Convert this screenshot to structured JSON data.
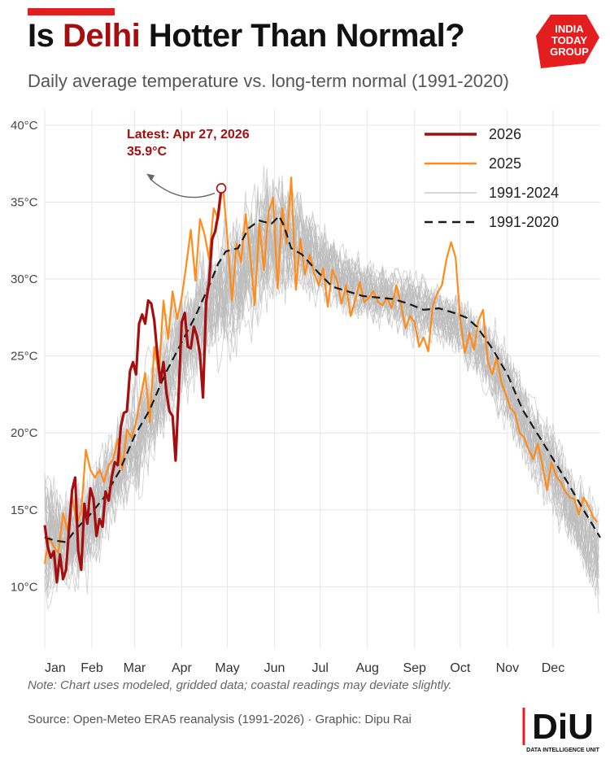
{
  "header": {
    "title_pre": "Is ",
    "title_highlight": "Delhi",
    "title_post": " Hotter Than Normal?",
    "subtitle": "Daily average temperature vs. long-term normal (1991-2020)"
  },
  "logo_india_today": {
    "line1": "INDIA",
    "line2": "TODAY",
    "line3": "GROUP",
    "color": "#e41e1e"
  },
  "logo_diu": {
    "mark": "DiU",
    "caption": "DATA INTELLIGENCE UNIT"
  },
  "footer": {
    "note": "Note: Chart uses modeled, gridded data; coastal readings may deviate slightly.",
    "source": "Source: Open-Meteo ERA5 reanalysis (1991-2026) · Graphic: Dipu Rai"
  },
  "colors": {
    "accent_red": "#e41e1e",
    "series_2026": "#a50e0e",
    "series_2025": "#ff8c1a",
    "series_history": "#bdbdbd",
    "series_normal": "#1a1a1a",
    "grid": "#e6e6e6"
  },
  "chart_data": {
    "type": "line",
    "xlabel": "",
    "ylabel": "",
    "x_unit": "day_of_year",
    "xlim": [
      1,
      366
    ],
    "ylim": [
      6,
      41
    ],
    "ytick_values": [
      10,
      15,
      20,
      25,
      30,
      35,
      40
    ],
    "ytick_labels": [
      "10°C",
      "15°C",
      "20°C",
      "25°C",
      "30°C",
      "35°C",
      "40°C"
    ],
    "xtick_days": [
      1,
      32,
      60,
      91,
      121,
      152,
      182,
      213,
      244,
      274,
      305,
      335
    ],
    "xtick_labels": [
      "Jan",
      "Feb",
      "Mar",
      "Apr",
      "May",
      "Jun",
      "Jul",
      "Aug",
      "Sep",
      "Oct",
      "Nov",
      "Dec"
    ],
    "grid": true,
    "legend": {
      "placement": "top-right",
      "entries": [
        {
          "label": "2026",
          "series": "2026"
        },
        {
          "label": "2025",
          "series": "2025"
        },
        {
          "label": "1991-2024",
          "series": "history"
        },
        {
          "label": "1991-2020",
          "series": "normal"
        }
      ]
    },
    "annotation": {
      "line1": "Latest: Apr 27, 2026",
      "line2": "35.9°C",
      "day": 117,
      "value": 35.9
    },
    "series": [
      {
        "name": "1991-2020",
        "style": "dashed",
        "x": [
          1,
          8,
          15,
          22,
          30,
          40,
          50,
          60,
          70,
          80,
          90,
          100,
          110,
          115,
          120,
          128,
          135,
          142,
          150,
          155,
          158,
          163,
          170,
          180,
          190,
          200,
          210,
          220,
          230,
          240,
          250,
          260,
          270,
          278,
          285,
          295,
          305,
          315,
          325,
          335,
          345,
          355,
          366
        ],
        "values": [
          13.2,
          13.0,
          12.9,
          13.8,
          14.6,
          15.8,
          17.5,
          19.8,
          21.5,
          23.8,
          25.7,
          27.6,
          29.8,
          31.0,
          31.8,
          32.0,
          33.3,
          33.8,
          33.6,
          34.1,
          33.5,
          32.0,
          31.6,
          30.5,
          29.5,
          29.2,
          28.9,
          28.8,
          28.7,
          28.4,
          28.0,
          28.1,
          27.8,
          27.5,
          26.9,
          25.5,
          23.8,
          21.5,
          19.9,
          18.3,
          16.7,
          15.0,
          13.2
        ]
      },
      {
        "name": "2025",
        "x": [
          1,
          4,
          7,
          10,
          13,
          16,
          19,
          22,
          25,
          28,
          31,
          34,
          37,
          40,
          43,
          46,
          49,
          52,
          55,
          58,
          61,
          64,
          67,
          70,
          73,
          76,
          79,
          82,
          85,
          88,
          91,
          94,
          97,
          100,
          103,
          106,
          109,
          112,
          115,
          118,
          121,
          124,
          127,
          130,
          133,
          136,
          139,
          142,
          145,
          148,
          151,
          154,
          157,
          160,
          163,
          166,
          169,
          172,
          175,
          178,
          181,
          184,
          187,
          190,
          193,
          196,
          199,
          202,
          205,
          208,
          211,
          214,
          217,
          220,
          223,
          226,
          229,
          232,
          235,
          238,
          241,
          244,
          247,
          250,
          253,
          256,
          259,
          262,
          265,
          268,
          271,
          274,
          277,
          280,
          283,
          286,
          289,
          292,
          295,
          298,
          301,
          304,
          307,
          310,
          313,
          316,
          319,
          322,
          325,
          328,
          331,
          334,
          337,
          340,
          343,
          346,
          349,
          352,
          355,
          358,
          361,
          364
        ],
        "values": [
          11.5,
          13.2,
          12.6,
          12.2,
          14.8,
          13.6,
          15.9,
          14.1,
          14.9,
          18.9,
          17.6,
          17.1,
          17.6,
          16.8,
          17.9,
          18.3,
          19.6,
          17.6,
          20.2,
          19.7,
          20.7,
          22.3,
          23.9,
          20.7,
          25.6,
          23.8,
          28.6,
          26.1,
          29.2,
          27.4,
          28.8,
          30.9,
          33.2,
          29.9,
          33.9,
          32.9,
          31.3,
          34.6,
          33.9,
          36.2,
          32.7,
          28.6,
          32.3,
          31.1,
          34.2,
          31.6,
          28.3,
          33.6,
          30.6,
          34.3,
          35.3,
          29.4,
          34.6,
          32.3,
          36.6,
          29.3,
          32.6,
          30.3,
          31.6,
          30.4,
          29.6,
          30.7,
          28.2,
          30.6,
          29.9,
          28.4,
          29.6,
          27.6,
          28.6,
          29.8,
          28.5,
          28.8,
          29.2,
          28.5,
          28.3,
          28.8,
          28.1,
          29.6,
          28.4,
          26.8,
          27.6,
          27.2,
          25.6,
          26.2,
          25.3,
          28.3,
          29.1,
          29.6,
          31.3,
          32.4,
          31.4,
          27.4,
          25.2,
          26.5,
          25.4,
          27.3,
          28.0,
          24.7,
          23.8,
          24.9,
          23.3,
          22.5,
          21.6,
          21.3,
          20.0,
          19.7,
          18.9,
          18.3,
          19.3,
          17.9,
          16.3,
          18.1,
          17.2,
          16.8,
          16.2,
          15.8,
          15.7,
          14.7,
          15.8,
          15.3,
          14.6,
          14.2
        ]
      },
      {
        "name": "2026",
        "x": [
          1,
          3,
          5,
          7,
          9,
          11,
          13,
          15,
          17,
          19,
          21,
          23,
          25,
          27,
          29,
          31,
          33,
          35,
          37,
          39,
          41,
          43,
          45,
          47,
          49,
          51,
          53,
          55,
          57,
          59,
          61,
          63,
          65,
          67,
          69,
          71,
          73,
          75,
          77,
          79,
          81,
          83,
          85,
          87,
          89,
          91,
          93,
          95,
          97,
          99,
          101,
          103,
          105,
          107,
          109,
          111,
          113,
          115,
          117
        ],
        "values": [
          14.0,
          12.6,
          11.9,
          12.3,
          10.3,
          12.1,
          10.5,
          11.1,
          13.8,
          16.3,
          17.1,
          12.3,
          11.1,
          15.4,
          14.1,
          16.4,
          15.7,
          13.3,
          14.4,
          13.9,
          16.2,
          15.6,
          17.1,
          18.1,
          17.9,
          20.4,
          21.3,
          21.4,
          24.0,
          24.6,
          23.8,
          27.1,
          27.7,
          27.1,
          28.6,
          28.4,
          27.3,
          25.1,
          23.3,
          24.6,
          22.6,
          21.4,
          21.1,
          18.2,
          22.6,
          27.2,
          27.8,
          25.6,
          25.5,
          26.9,
          26.3,
          25.1,
          22.3,
          28.5,
          29.8,
          32.6,
          33.1,
          34.2,
          35.9
        ]
      }
    ],
    "history_band": {
      "name": "1991-2024",
      "x": [
        1,
        15,
        30,
        45,
        60,
        75,
        90,
        105,
        120,
        135,
        150,
        165,
        180,
        195,
        210,
        225,
        240,
        255,
        270,
        285,
        300,
        315,
        330,
        345,
        360,
        366
      ],
      "min": [
        7.5,
        8.0,
        9.0,
        11.5,
        13.5,
        17.0,
        19.5,
        22.0,
        22.5,
        24.5,
        26.5,
        27.0,
        27.0,
        26.5,
        26.0,
        26.0,
        25.0,
        25.0,
        24.0,
        22.0,
        19.5,
        16.5,
        14.0,
        11.0,
        8.0,
        7.0
      ],
      "max": [
        19.5,
        18.0,
        19.5,
        22.0,
        25.0,
        28.0,
        30.5,
        34.0,
        36.5,
        38.0,
        39.5,
        38.0,
        35.5,
        33.5,
        32.5,
        32.0,
        32.0,
        31.0,
        30.5,
        29.5,
        28.0,
        25.5,
        23.0,
        20.0,
        18.0,
        17.0
      ]
    }
  }
}
